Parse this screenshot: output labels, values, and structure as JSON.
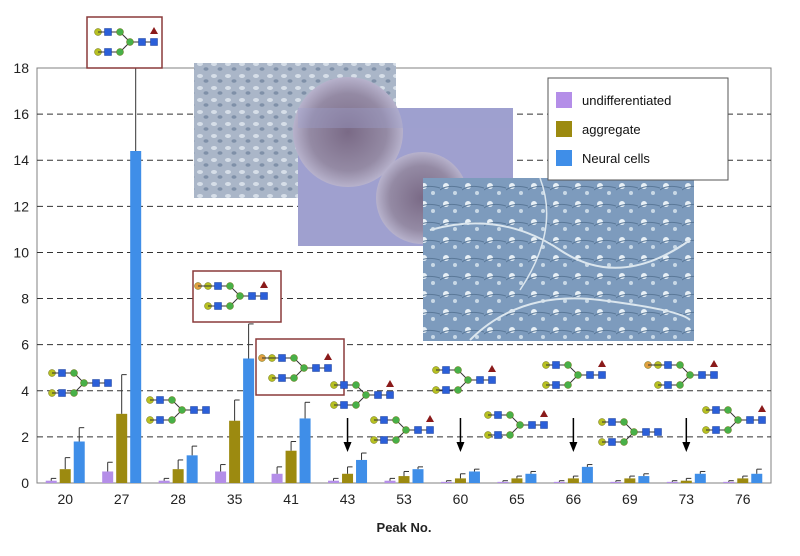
{
  "chart_data": {
    "type": "bar",
    "xlabel": "Peak No.",
    "ylabel": "",
    "ylim": [
      0,
      18
    ],
    "yticks": [
      0,
      2,
      4,
      6,
      8,
      10,
      12,
      14,
      16,
      18
    ],
    "grid": "horizontal-dashed",
    "legend_position": "top-right",
    "categories": [
      "20",
      "27",
      "28",
      "35",
      "41",
      "43",
      "53",
      "60",
      "65",
      "66",
      "69",
      "73",
      "76"
    ],
    "series": [
      {
        "name": "undifferentiated",
        "color": "#b48ee8",
        "values": [
          0.1,
          0.5,
          0.1,
          0.5,
          0.4,
          0.1,
          0.1,
          0.05,
          0.05,
          0.05,
          0.05,
          0.05,
          0.05
        ],
        "errors": [
          0.1,
          0.4,
          0.1,
          0.3,
          0.3,
          0.1,
          0.1,
          0.05,
          0.05,
          0.05,
          0.05,
          0.05,
          0.05
        ]
      },
      {
        "name": "aggregate",
        "color": "#9c8a10",
        "values": [
          0.6,
          3.0,
          0.6,
          2.7,
          1.4,
          0.4,
          0.3,
          0.2,
          0.2,
          0.2,
          0.2,
          0.1,
          0.2
        ],
        "errors": [
          0.5,
          1.7,
          0.4,
          0.9,
          0.4,
          0.3,
          0.2,
          0.2,
          0.1,
          0.1,
          0.1,
          0.1,
          0.1
        ]
      },
      {
        "name": "Neural cells",
        "color": "#3f8ee8",
        "values": [
          1.8,
          14.4,
          1.2,
          5.4,
          2.8,
          1.0,
          0.6,
          0.5,
          0.4,
          0.7,
          0.3,
          0.4,
          0.4
        ],
        "errors": [
          0.6,
          3.6,
          0.4,
          1.5,
          0.7,
          0.3,
          0.1,
          0.1,
          0.1,
          0.1,
          0.1,
          0.1,
          0.2
        ]
      }
    ],
    "highlighted_peaks": [
      "27",
      "35",
      "41"
    ],
    "down_arrow_peaks": [
      "43",
      "60",
      "66",
      "73"
    ]
  },
  "insets": [
    {
      "name": "undifferentiated-cells-micrograph"
    },
    {
      "name": "aggregate-micrograph"
    },
    {
      "name": "neural-cells-micrograph"
    }
  ]
}
